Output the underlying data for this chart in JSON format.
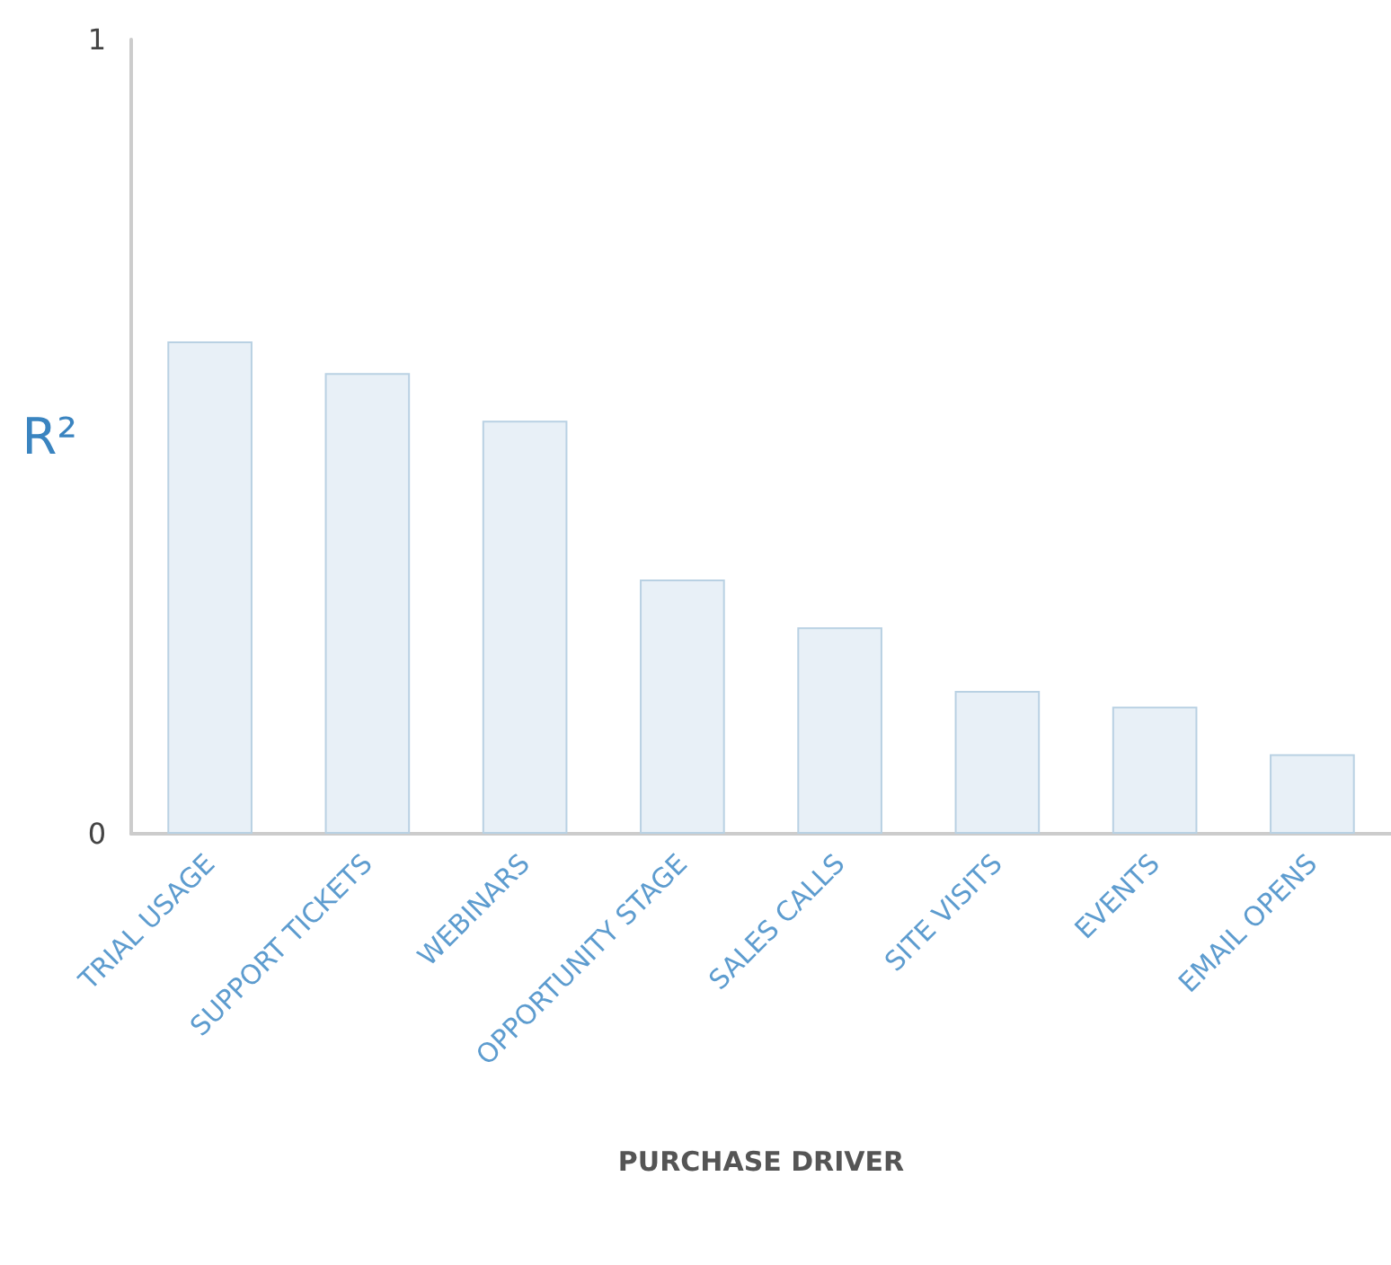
{
  "chart_data": {
    "type": "bar",
    "xlabel": "PURCHASE DRIVER",
    "ylabel": "R²",
    "categories": [
      "TRIAL USAGE",
      "SUPPORT TICKETS",
      "WEBINARS",
      "OPPORTUNITY STAGE",
      "SALES CALLS",
      "SITE VISITS",
      "EVENTS",
      "EMAIL OPENS"
    ],
    "values": [
      0.62,
      0.58,
      0.52,
      0.32,
      0.26,
      0.18,
      0.16,
      0.1
    ],
    "color": "#e8f0f7",
    "ylim": [
      0,
      1
    ],
    "yticks": [
      0,
      1
    ],
    "grid": false
  }
}
